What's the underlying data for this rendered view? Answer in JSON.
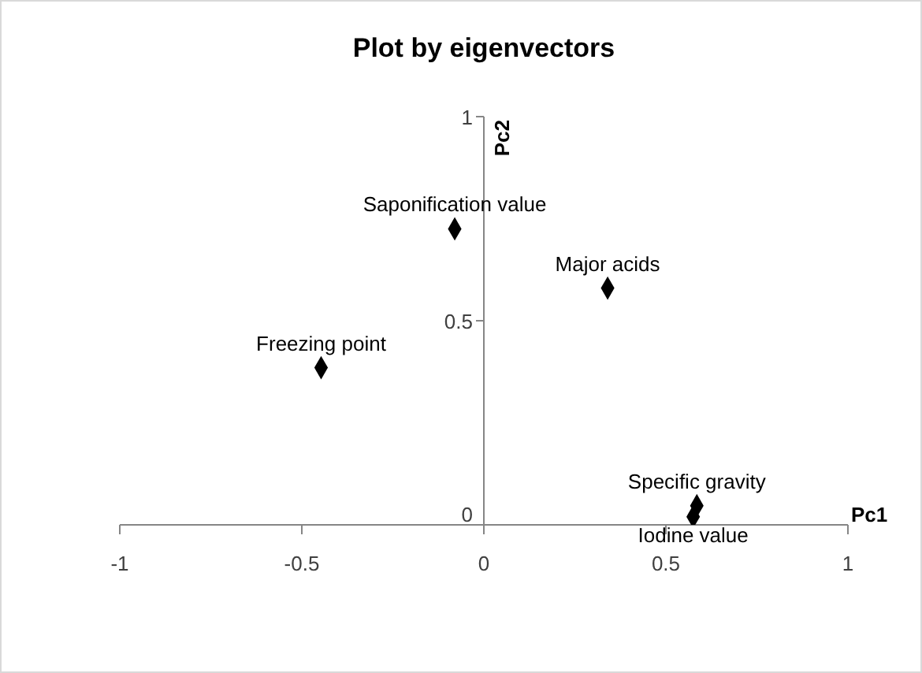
{
  "chart_data": {
    "type": "scatter",
    "title": "Plot by eigenvectors",
    "xlabel": "Pc1",
    "ylabel": "Pc2",
    "x": [
      -0.08,
      0.34,
      -0.447,
      0.585,
      0.575
    ],
    "values": [
      0.725,
      0.58,
      0.385,
      0.047,
      0.02
    ],
    "color": "#000000",
    "marker": "diamond",
    "grid": false,
    "legend": false,
    "xlim": [
      -1,
      1
    ],
    "ylim": [
      0,
      1
    ],
    "xticks": [
      -1,
      -0.5,
      0,
      0.5,
      1
    ],
    "yticks": [
      0,
      0.5,
      1
    ],
    "annotations": [
      {
        "text": "Saponification value",
        "x": -0.08,
        "y": 0.725
      },
      {
        "text": "Major acids",
        "x": 0.34,
        "y": 0.58
      },
      {
        "text": "Freezing point",
        "x": -0.447,
        "y": 0.385
      },
      {
        "text": "Specific gravity",
        "x": 0.585,
        "y": 0.047
      },
      {
        "text": "Iodine value",
        "x": 0.575,
        "y": 0.02
      }
    ]
  }
}
